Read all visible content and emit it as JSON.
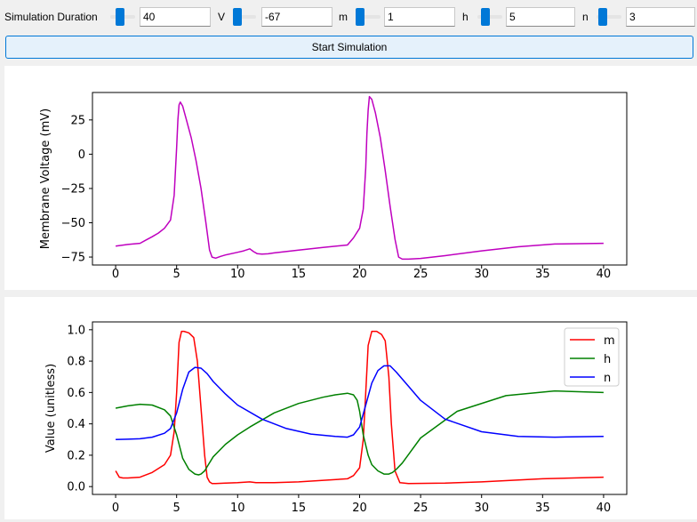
{
  "controls": [
    {
      "key": "duration",
      "label": "Simulation Duration",
      "value": "40"
    },
    {
      "key": "v",
      "label": "V",
      "value": "-67"
    },
    {
      "key": "m",
      "label": "m",
      "value": "1"
    },
    {
      "key": "h",
      "label": "h",
      "value": "5"
    },
    {
      "key": "n",
      "label": "n",
      "value": "3"
    }
  ],
  "start_button": "Start Simulation",
  "colors": {
    "voltage": "#bf00bf",
    "m": "#ff0000",
    "h": "#008000",
    "n": "#0000ff"
  },
  "chart_data": [
    {
      "type": "line",
      "title": "",
      "xlabel": "",
      "ylabel": "Membrane Voltage (mV)",
      "xlim": [
        -1.9,
        41.9
      ],
      "ylim": [
        -80.8,
        45
      ],
      "xticks": [
        0,
        5,
        10,
        15,
        20,
        25,
        30,
        35,
        40
      ],
      "yticks": [
        25,
        0,
        -25,
        -50,
        -75
      ],
      "ytick_labels": [
        "25",
        "0",
        "−25",
        "−50",
        "−75"
      ],
      "grid": false,
      "series": [
        {
          "color": "#bf00bf",
          "x": [
            0,
            1,
            2,
            2.5,
            3,
            3.5,
            4,
            4.5,
            4.8,
            5,
            5.1,
            5.2,
            5.3,
            5.5,
            5.8,
            6.2,
            6.6,
            7,
            7.4,
            7.7,
            7.9,
            8.2,
            8.6,
            9,
            10,
            10.5,
            11,
            11.3,
            11.6,
            12,
            12.5,
            13,
            15,
            17,
            19,
            19.5,
            20,
            20.3,
            20.5,
            20.6,
            20.7,
            20.8,
            21,
            21.3,
            21.7,
            22.1,
            22.5,
            22.9,
            23.2,
            23.5,
            24,
            25,
            27,
            30,
            33,
            36,
            40
          ],
          "y": [
            -67,
            -65.8,
            -65,
            -62.5,
            -60.2,
            -57.5,
            -54,
            -48,
            -30,
            5,
            25,
            36,
            38,
            35,
            25,
            12,
            -5,
            -25,
            -50,
            -70,
            -75,
            -75.8,
            -74.5,
            -73.5,
            -71.5,
            -70.5,
            -69,
            -71,
            -72.5,
            -72.8,
            -72.6,
            -72,
            -70,
            -68,
            -66.2,
            -61,
            -54,
            -40,
            -10,
            15,
            32,
            42,
            40,
            30,
            12,
            -12,
            -38,
            -62,
            -75,
            -76.5,
            -76.5,
            -76,
            -74,
            -70.5,
            -67.5,
            -65.5,
            -65
          ]
        }
      ]
    },
    {
      "type": "line",
      "title": "",
      "xlabel": "",
      "ylabel": "Value (unitless)",
      "xlim": [
        -1.9,
        41.9
      ],
      "ylim": [
        -0.05,
        1.05
      ],
      "xticks": [
        0,
        5,
        10,
        15,
        20,
        25,
        30,
        35,
        40
      ],
      "yticks": [
        0,
        0.2,
        0.4,
        0.6,
        0.8,
        1.0
      ],
      "ytick_labels": [
        "0.0",
        "0.2",
        "0.4",
        "0.6",
        "0.8",
        "1.0"
      ],
      "grid": false,
      "legend": "top-right",
      "series": [
        {
          "name": "m",
          "color": "#ff0000",
          "x": [
            0,
            0.3,
            0.6,
            1,
            2,
            3,
            4,
            4.5,
            4.8,
            5,
            5.2,
            5.4,
            5.6,
            6,
            6.4,
            6.7,
            7,
            7.3,
            7.5,
            7.7,
            7.9,
            8.2,
            9,
            10,
            11,
            11.5,
            13,
            15,
            19,
            19.5,
            20,
            20.3,
            20.5,
            20.7,
            21,
            21.4,
            21.8,
            22.1,
            22.4,
            22.6,
            22.9,
            23.3,
            24,
            27,
            30,
            35,
            40
          ],
          "y": [
            0.1,
            0.06,
            0.055,
            0.055,
            0.06,
            0.09,
            0.14,
            0.2,
            0.35,
            0.6,
            0.92,
            0.99,
            0.99,
            0.98,
            0.95,
            0.8,
            0.5,
            0.2,
            0.06,
            0.03,
            0.02,
            0.02,
            0.022,
            0.025,
            0.03,
            0.025,
            0.025,
            0.03,
            0.05,
            0.07,
            0.12,
            0.3,
            0.6,
            0.9,
            0.99,
            0.99,
            0.97,
            0.93,
            0.7,
            0.4,
            0.1,
            0.025,
            0.02,
            0.022,
            0.03,
            0.05,
            0.06
          ]
        },
        {
          "name": "h",
          "color": "#008000",
          "x": [
            0,
            1,
            2,
            3,
            4,
            4.5,
            5,
            5.5,
            6,
            6.5,
            6.8,
            7,
            7.3,
            7.6,
            8,
            9,
            10,
            11,
            13,
            15,
            17,
            18,
            19,
            19.5,
            19.8,
            20,
            20.3,
            20.7,
            21,
            21.5,
            22,
            22.4,
            22.7,
            23,
            23.5,
            25,
            28,
            32,
            36,
            40
          ],
          "y": [
            0.5,
            0.515,
            0.525,
            0.52,
            0.49,
            0.45,
            0.33,
            0.18,
            0.11,
            0.08,
            0.075,
            0.08,
            0.1,
            0.14,
            0.19,
            0.27,
            0.33,
            0.38,
            0.47,
            0.53,
            0.57,
            0.585,
            0.595,
            0.585,
            0.55,
            0.48,
            0.33,
            0.2,
            0.14,
            0.1,
            0.08,
            0.08,
            0.09,
            0.11,
            0.15,
            0.31,
            0.48,
            0.58,
            0.61,
            0.6
          ]
        },
        {
          "name": "n",
          "color": "#0000ff",
          "x": [
            0,
            1,
            2,
            3,
            4,
            4.5,
            5,
            5.5,
            6,
            6.5,
            7,
            7.5,
            8,
            9,
            10,
            12,
            14,
            16,
            18,
            19,
            19.5,
            20,
            20.5,
            21,
            21.5,
            22,
            22.5,
            23,
            24,
            25,
            27,
            30,
            33,
            36,
            40
          ],
          "y": [
            0.3,
            0.302,
            0.305,
            0.315,
            0.34,
            0.37,
            0.47,
            0.62,
            0.73,
            0.76,
            0.755,
            0.72,
            0.67,
            0.59,
            0.52,
            0.43,
            0.37,
            0.335,
            0.32,
            0.315,
            0.33,
            0.38,
            0.52,
            0.66,
            0.74,
            0.77,
            0.77,
            0.73,
            0.64,
            0.55,
            0.43,
            0.35,
            0.32,
            0.315,
            0.32
          ]
        }
      ]
    }
  ]
}
